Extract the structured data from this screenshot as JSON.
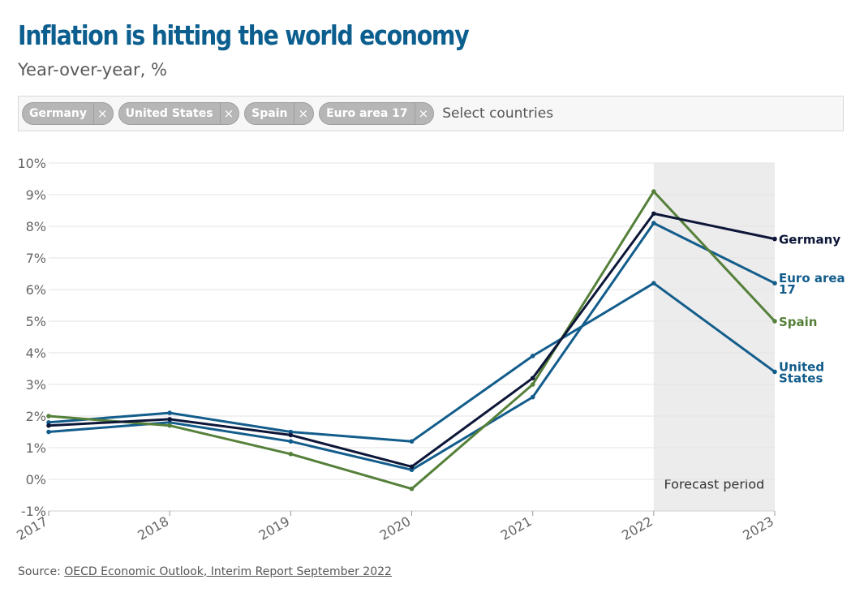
{
  "header": {
    "title": "Inflation is hitting the world economy",
    "subtitle": "Year-over-year, %"
  },
  "selector": {
    "chips": [
      {
        "label": "Germany",
        "remove": "×"
      },
      {
        "label": "United States",
        "remove": "×"
      },
      {
        "label": "Spain",
        "remove": "×"
      },
      {
        "label": "Euro area 17",
        "remove": "×"
      }
    ],
    "placeholder": "Select countries"
  },
  "footer": {
    "source_label": "Source:",
    "source_link": "OECD Economic Outlook, Interim Report September 2022"
  },
  "chart_data": {
    "type": "line",
    "title": "Inflation is hitting the world economy",
    "ylabel": "Year-over-year, %",
    "x": [
      2017,
      2018,
      2019,
      2020,
      2021,
      2022,
      2023
    ],
    "x_labels": [
      "2017",
      "2018",
      "2019",
      "2020",
      "2021",
      "2022",
      "2023"
    ],
    "ylim": [
      -1,
      10
    ],
    "y_ticks": [
      -1,
      0,
      1,
      2,
      3,
      4,
      5,
      6,
      7,
      8,
      9,
      10
    ],
    "y_tick_labels": [
      "-1%",
      "0%",
      "1%",
      "2%",
      "3%",
      "4%",
      "5%",
      "6%",
      "7%",
      "8%",
      "9%",
      "10%"
    ],
    "grid": true,
    "forecast": {
      "from": 2022,
      "to": 2023,
      "label": "Forecast period"
    },
    "series": [
      {
        "name": "United States",
        "label_lines": [
          "United",
          "States"
        ],
        "color": "#135d8c",
        "values": [
          1.8,
          2.1,
          1.5,
          1.2,
          3.9,
          6.2,
          3.4
        ]
      },
      {
        "name": "Euro area 17",
        "label_lines": [
          "Euro area",
          "17"
        ],
        "color": "#135d8c",
        "values": [
          1.5,
          1.8,
          1.2,
          0.3,
          2.6,
          8.1,
          6.2
        ]
      },
      {
        "name": "Spain",
        "label_lines": [
          "Spain"
        ],
        "color": "#55803a",
        "values": [
          2.0,
          1.7,
          0.8,
          -0.3,
          3.0,
          9.1,
          5.0
        ]
      },
      {
        "name": "Germany",
        "label_lines": [
          "Germany"
        ],
        "color": "#0d1638",
        "values": [
          1.7,
          1.9,
          1.4,
          0.4,
          3.2,
          8.4,
          7.6
        ]
      }
    ]
  }
}
